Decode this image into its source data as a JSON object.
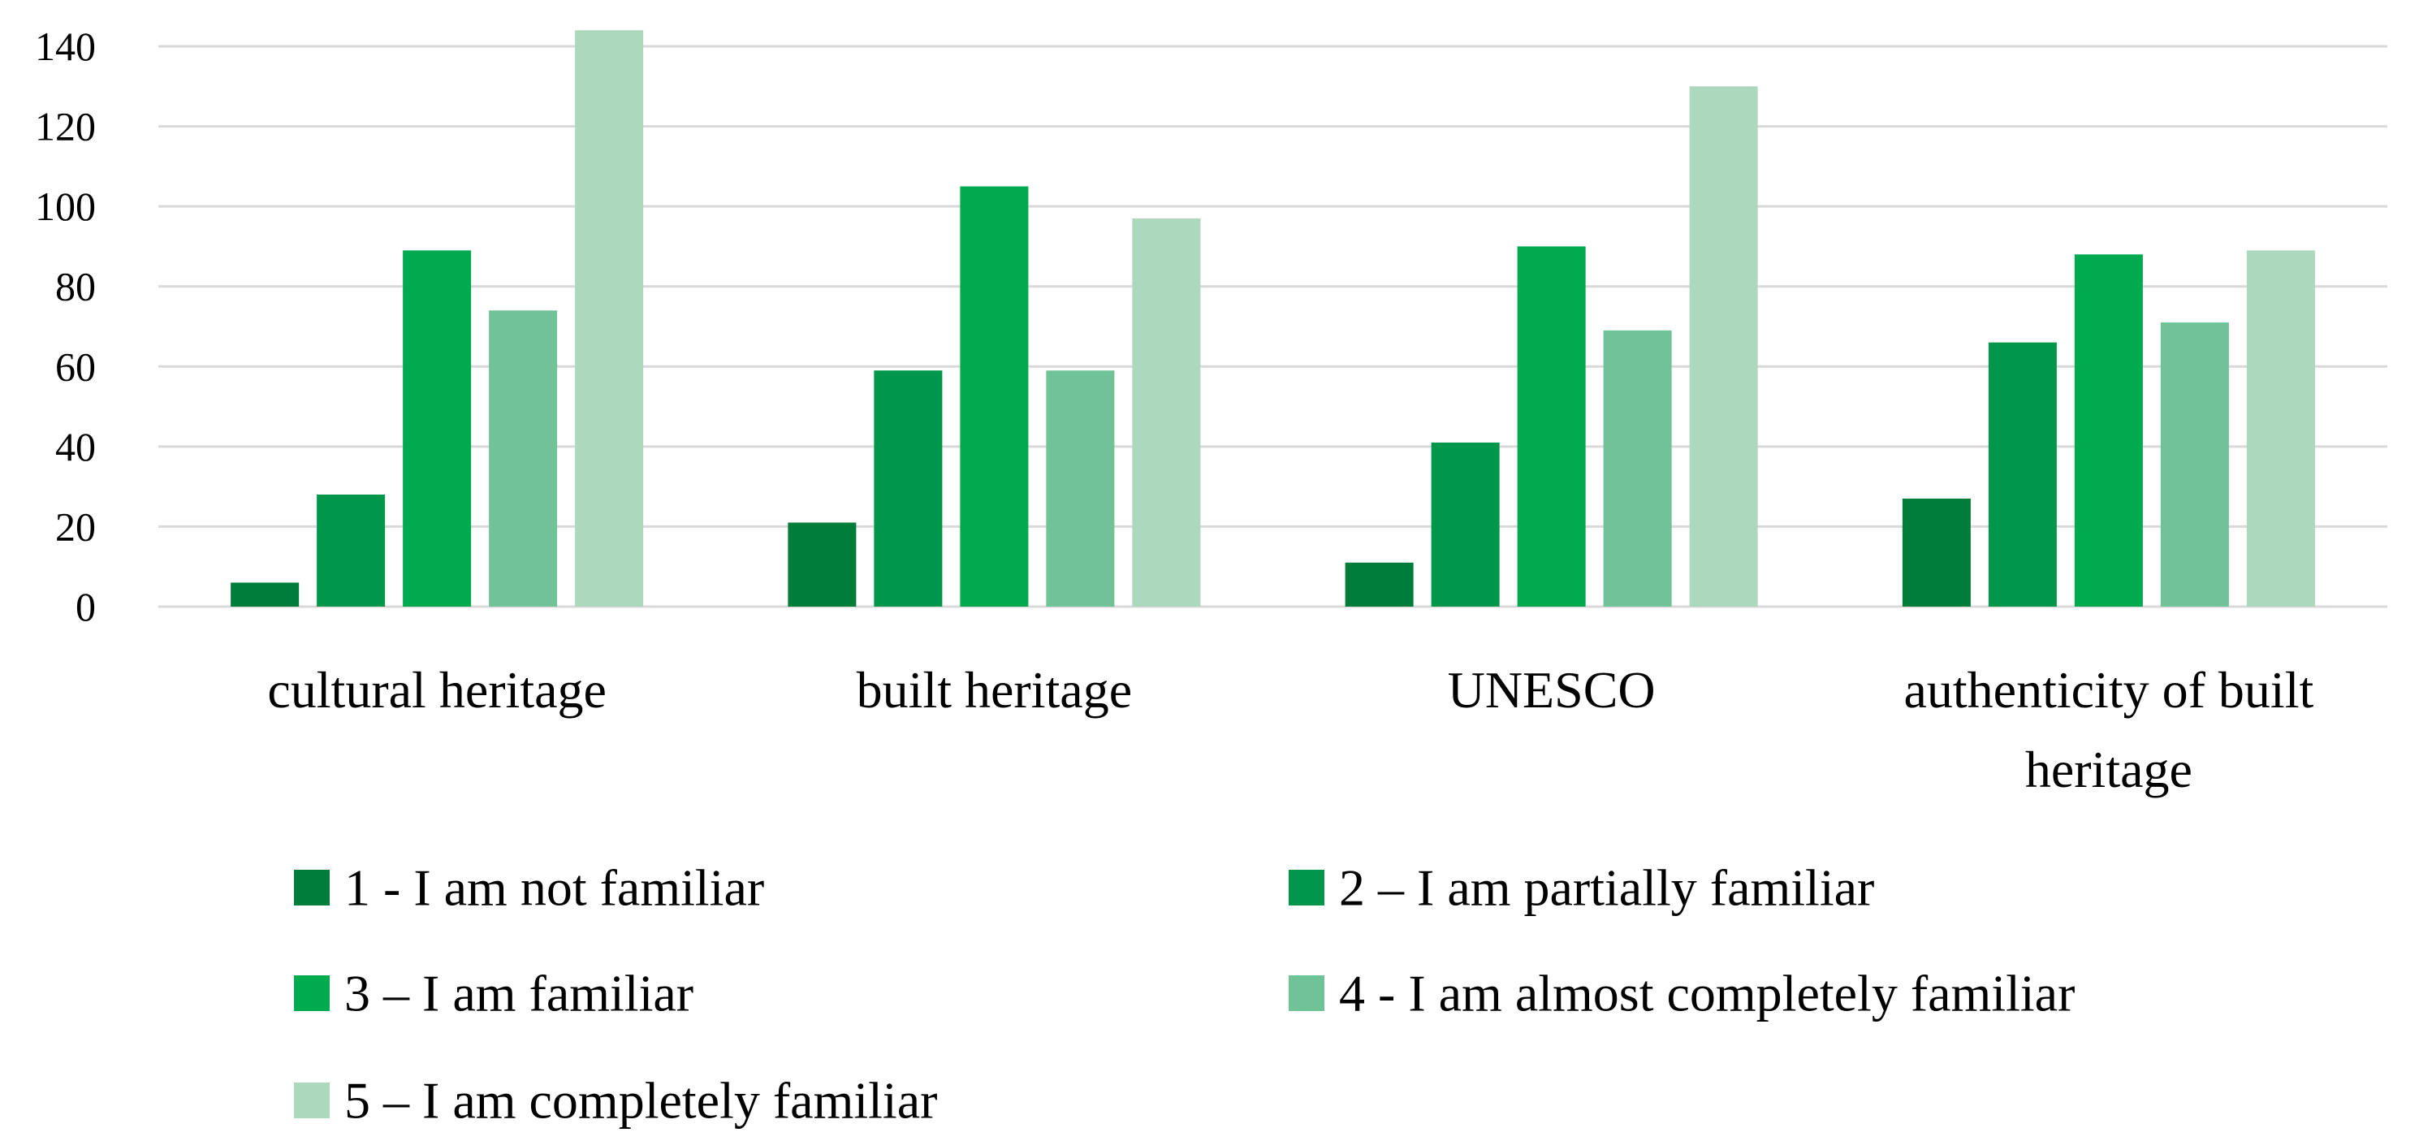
{
  "chart_data": {
    "type": "bar",
    "title": "",
    "xlabel": "",
    "ylabel": "",
    "ylim": [
      0,
      140
    ],
    "yticks": [
      0,
      20,
      40,
      60,
      80,
      100,
      120,
      140
    ],
    "ytick_labels": [
      "0",
      "20",
      "40",
      "60",
      "80",
      "100",
      "120",
      "140"
    ],
    "grid": true,
    "legend_position": "bottom",
    "categories": [
      [
        "cultural heritage"
      ],
      [
        "built heritage"
      ],
      [
        "UNESCO"
      ],
      [
        "authenticity of built",
        "heritage"
      ]
    ],
    "series": [
      {
        "name": "1 - I am not familiar",
        "color": "#007d3a",
        "values": [
          6,
          21,
          11,
          27
        ]
      },
      {
        "name": "2 – I am partially familiar",
        "color": "#00974a",
        "values": [
          28,
          59,
          41,
          66
        ]
      },
      {
        "name": "3 – I am familiar",
        "color": "#00aa4f",
        "values": [
          89,
          105,
          90,
          88
        ]
      },
      {
        "name": "4 - I am almost completely familiar",
        "color": "#6fc396",
        "values": [
          74,
          59,
          69,
          71
        ]
      },
      {
        "name": "5 – I am completely familiar",
        "color": "#acd8be",
        "values": [
          144,
          97,
          130,
          89
        ]
      }
    ]
  }
}
